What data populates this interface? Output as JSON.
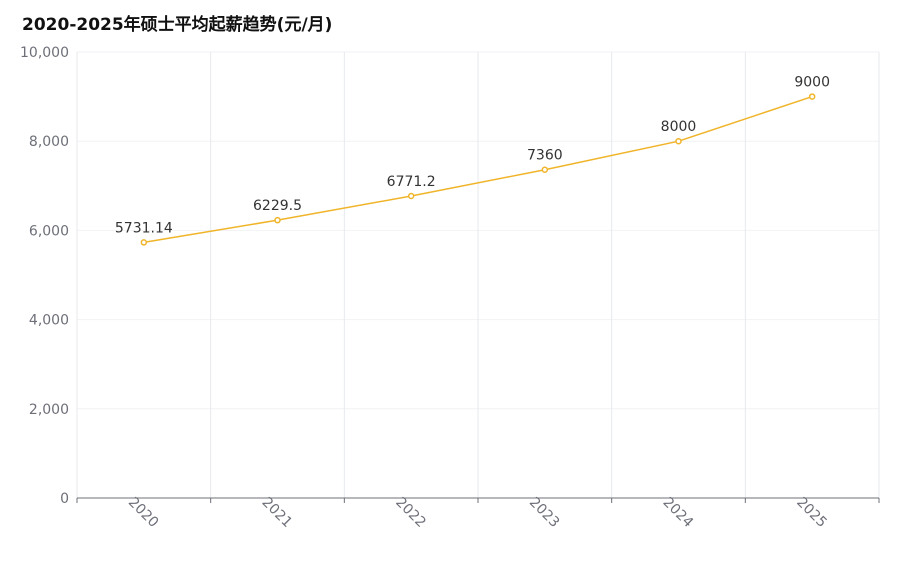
{
  "title": "2020-2025年硕士平均起薪趋势(元/月)",
  "colors": {
    "line": "#f0b429",
    "grid": "#e6e9ee",
    "axis": "#6e7079",
    "text": "#6e7079"
  },
  "chart_data": {
    "type": "line",
    "title": "2020-2025年硕士平均起薪趋势(元/月)",
    "categories": [
      "2020",
      "2021",
      "2022",
      "2023",
      "2024",
      "2025"
    ],
    "series": [
      {
        "values": [
          5731.14,
          6229.5,
          6771.2,
          7360,
          8000,
          9000
        ],
        "labels": [
          "5731.14",
          "6229.5",
          "6771.2",
          "7360",
          "8000",
          "9000"
        ]
      }
    ],
    "ylim": [
      0,
      10000
    ],
    "yticks": [
      0,
      2000,
      4000,
      6000,
      8000,
      10000
    ],
    "ytick_labels": [
      "0",
      "2,000",
      "4,000",
      "6,000",
      "8,000",
      "10,000"
    ],
    "grid": true,
    "xlabel": "",
    "ylabel": ""
  }
}
